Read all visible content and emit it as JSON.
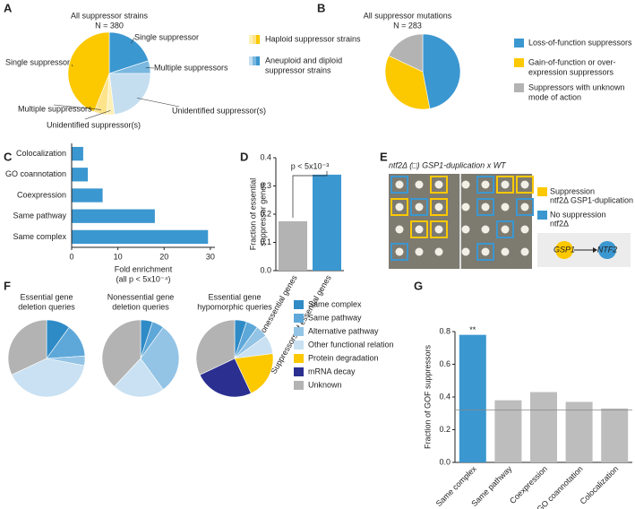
{
  "panel_labels": [
    "A",
    "B",
    "C",
    "D",
    "E",
    "F",
    "G"
  ],
  "chart_data": [
    {
      "type": "pie",
      "title": "All suppressor strains",
      "subtitle": "N = 380",
      "categories": [
        "Single suppressor",
        "Multiple suppressors",
        "Unidentified suppressor(s)",
        "Unidentified suppressor(s)",
        "Multiple suppressors",
        "Single suppressor"
      ],
      "values": [
        20,
        5,
        23,
        3,
        5,
        44
      ],
      "colors": [
        "#3b97d0",
        "#7ab8e0",
        "#c4def0",
        "#fdf0b8",
        "#fde38a",
        "#fcc800"
      ],
      "legend": [
        {
          "name": [
            "Haploid suppressor strains"
          ],
          "colors": [
            "#fdf0b8",
            "#fde38a",
            "#fcc800"
          ]
        },
        {
          "name": [
            "Aneuploid and diploid",
            "suppressor strains"
          ],
          "colors": [
            "#c4def0",
            "#7ab8e0",
            "#3b97d0"
          ]
        }
      ]
    },
    {
      "type": "pie",
      "title": "All suppressor mutations",
      "subtitle": "N = 283",
      "categories": [
        [
          "Loss-of-function suppressors"
        ],
        [
          "Gain-of-function or over-",
          "expression suppressors"
        ],
        [
          "Suppressors with unknown",
          "mode of action"
        ]
      ],
      "values": [
        47,
        35,
        18
      ],
      "colors": [
        "#3b97d0",
        "#fcc800",
        "#b3b3b3"
      ]
    },
    {
      "type": "hbar",
      "categories": [
        "Colocalization",
        "GO coannotation",
        "Coexpression",
        "Same pathway",
        "Same complex"
      ],
      "values": [
        2.5,
        3.5,
        6.7,
        18,
        29.5
      ],
      "color": "#3b97d0",
      "xlim": [
        0,
        31
      ],
      "xticks": [
        0,
        10,
        20,
        30
      ],
      "x_label": [
        "Fold enrichment",
        "(all p < 5x10⁻⁴)"
      ]
    },
    {
      "type": "bar",
      "categories": [
        "Suppressors of nonessential genes",
        "Suppressors of essential genes"
      ],
      "values": [
        0.175,
        0.34
      ],
      "colors": [
        "#b3b3b3",
        "#3b97d0"
      ],
      "ylim": [
        0,
        0.4
      ],
      "yticks": [
        {
          "value": 0,
          "label": "0.0"
        },
        0.1,
        0.2,
        0.3,
        0.4
      ],
      "y_label": [
        "Fraction of essential",
        "suppressor genes"
      ],
      "annotation": "p < 5x10⁻³"
    },
    {
      "type": "multi_pie",
      "categories": [
        "Same complex",
        "Same pathway",
        "Alternative pathway",
        "Other functional relation",
        "Protein degradation",
        "mRNA decay",
        "Unknown"
      ],
      "colors": [
        "#2f8bc6",
        "#5ea8d9",
        "#93c4e6",
        "#c9e1f2",
        "#fcc800",
        "#2b2f8f",
        "#b3b3b3"
      ],
      "pies": [
        {
          "title": [
            "Essential gene",
            "deletion queries"
          ],
          "values": [
            10,
            14,
            4,
            40,
            0,
            0,
            32
          ]
        },
        {
          "title": [
            "Nonessential gene",
            "deletion queries"
          ],
          "values": [
            5,
            5,
            30,
            22,
            0,
            0,
            38
          ]
        },
        {
          "title": [
            "Essential gene",
            "hypomorphic queries"
          ],
          "values": [
            5,
            5,
            5,
            8,
            20,
            25,
            32
          ]
        }
      ]
    },
    {
      "type": "bar",
      "categories": [
        "Same complex",
        "Same pathway",
        "Coexpression",
        "GO coannotation",
        "Colocalization"
      ],
      "values": [
        0.78,
        0.38,
        0.43,
        0.37,
        0.33
      ],
      "colors": [
        "#3b97d0",
        "#bdbdbd",
        "#bdbdbd",
        "#bdbdbd",
        "#bdbdbd"
      ],
      "ylim": [
        0,
        0.8
      ],
      "yticks": [
        {
          "value": 0,
          "label": "0.0"
        },
        0.2,
        0.4,
        0.6,
        0.8
      ],
      "y_label": [
        "Fraction of GOF suppressors"
      ],
      "significance": "**",
      "reference_line": 0.32
    }
  ],
  "panel_e": {
    "title": "ntf2Δ (□) GSP1-duplication x WT",
    "legend": [
      {
        "lines": [
          "Suppression",
          "ntf2Δ GSP1-duplication"
        ],
        "color": "#fcc800"
      },
      {
        "lines": [
          "No suppression",
          "ntf2Δ"
        ],
        "color": "#3b97d0"
      }
    ],
    "diagram": [
      "GSP1",
      "NTF2"
    ]
  }
}
